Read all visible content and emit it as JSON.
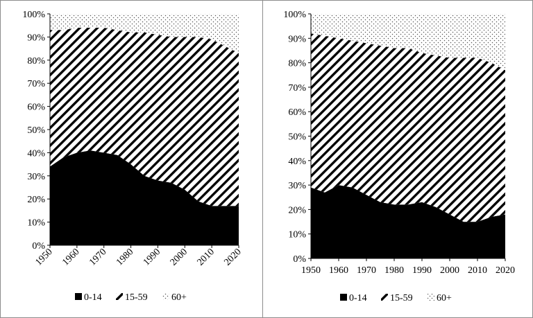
{
  "chart_data": [
    {
      "type": "area",
      "stacked": true,
      "percent": true,
      "title": "",
      "xlabel": "",
      "ylabel": "",
      "x": [
        1950,
        1955,
        1960,
        1965,
        1970,
        1975,
        1980,
        1985,
        1990,
        1995,
        2000,
        2005,
        2010,
        2015,
        2020
      ],
      "x_ticks": [
        "1950",
        "1960",
        "1970",
        "1980",
        "1990",
        "2000",
        "2010",
        "2020"
      ],
      "ylim": [
        0,
        100
      ],
      "y_ticks": [
        "0%",
        "10%",
        "20%",
        "30%",
        "40%",
        "50%",
        "60%",
        "70%",
        "80%",
        "90%",
        "100%"
      ],
      "series": [
        {
          "name": "0-14",
          "values": [
            34,
            38,
            40,
            41,
            40,
            39,
            35,
            30,
            28,
            27,
            24,
            19,
            17,
            17,
            17
          ]
        },
        {
          "name": "15-59",
          "values": [
            59,
            55,
            54,
            53,
            54,
            54,
            57,
            62,
            63,
            63,
            66,
            71,
            72,
            69,
            66
          ]
        },
        {
          "name": "60+",
          "values": [
            7,
            7,
            6,
            6,
            6,
            7,
            8,
            8,
            9,
            10,
            10,
            10,
            11,
            14,
            17
          ]
        }
      ],
      "legend_position": "bottom",
      "grid": false
    },
    {
      "type": "area",
      "stacked": true,
      "percent": true,
      "title": "",
      "xlabel": "",
      "ylabel": "",
      "x": [
        1950,
        1955,
        1960,
        1965,
        1970,
        1975,
        1980,
        1985,
        1990,
        1995,
        2000,
        2005,
        2010,
        2015,
        2020
      ],
      "x_ticks": [
        "1950",
        "1960",
        "1970",
        "1980",
        "1990",
        "2000",
        "2010",
        "2020"
      ],
      "ylim": [
        0,
        100
      ],
      "y_ticks": [
        "0%",
        "10%",
        "20%",
        "30%",
        "40%",
        "50%",
        "60%",
        "70%",
        "80%",
        "90%",
        "100%"
      ],
      "series": [
        {
          "name": "0-14",
          "values": [
            29,
            27,
            30,
            29,
            26,
            23,
            22,
            22,
            23,
            21,
            18,
            15,
            15,
            17,
            18
          ]
        },
        {
          "name": "15-59",
          "values": [
            63,
            64,
            60,
            60,
            62,
            64,
            64,
            64,
            61,
            62,
            64,
            67,
            67,
            63,
            59
          ]
        },
        {
          "name": "60+",
          "values": [
            8,
            9,
            10,
            11,
            12,
            13,
            14,
            14,
            16,
            17,
            18,
            18,
            18,
            20,
            23
          ]
        }
      ],
      "legend_position": "bottom",
      "grid": false
    }
  ],
  "legend_items": [
    {
      "label": "0-14",
      "swatch": "solid-black"
    },
    {
      "label": "15-59",
      "swatch": "diagonal-hatch"
    },
    {
      "label": "60+",
      "swatch": "dotted"
    }
  ],
  "colors": {
    "ink": "#000000",
    "frame": "#8c8c8c",
    "dots": "#555555",
    "background": "#ffffff"
  }
}
